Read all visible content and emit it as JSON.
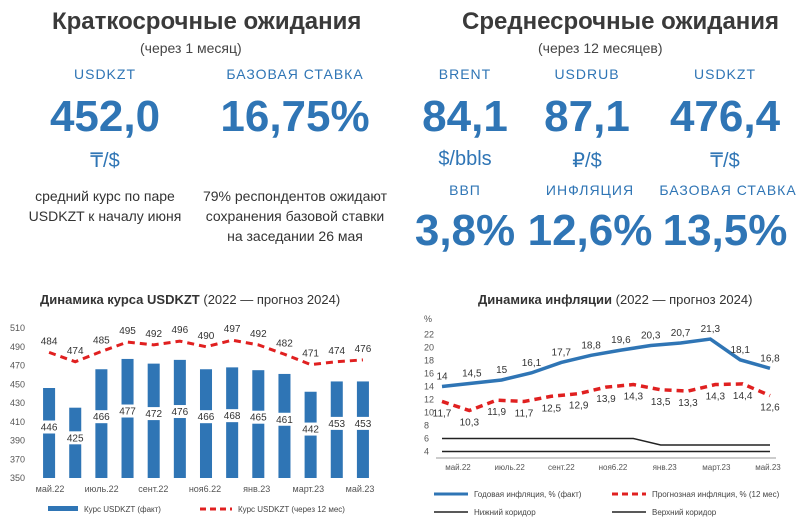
{
  "short_term": {
    "title": "Краткосрочные ожидания",
    "subtitle": "(через 1 месяц)",
    "usdkzt": {
      "label": "USDKZT",
      "value": "452,0",
      "unit": "₸/$"
    },
    "base_rate": {
      "label": "БАЗОВАЯ СТАВКА",
      "value": "16,75%"
    },
    "note_usdkzt": "средний курс по паре USDKZT к началу июня",
    "note_rate": "79% респондентов ожидают сохранения базовой ставки на заседании 26 мая"
  },
  "mid_term": {
    "title": "Среднесрочные ожидания",
    "subtitle": "(через 12 месяцев)",
    "brent": {
      "label": "BRENT",
      "value": "84,1",
      "unit": "$/bbls"
    },
    "usdrub": {
      "label": "USDRUB",
      "value": "87,1",
      "unit": "₽/$"
    },
    "usdkzt": {
      "label": "USDKZT",
      "value": "476,4",
      "unit": "₸/$"
    },
    "gdp": {
      "label": "ВВП",
      "value": "3,8%"
    },
    "inflation": {
      "label": "ИНФЛЯЦИЯ",
      "value": "12,6%"
    },
    "base_rate": {
      "label": "БАЗОВАЯ СТАВКА",
      "value": "13,5%"
    }
  },
  "colors": {
    "accent": "#2f75b5",
    "forecast": "#e02020",
    "corridor": "#222222"
  },
  "chart_data": [
    {
      "type": "bar",
      "title": "Динамика курса USDKZT",
      "title_note": "(2022 — прогноз 2024)",
      "yticks": [
        350,
        370,
        390,
        410,
        430,
        450,
        470,
        490,
        510
      ],
      "ylim": [
        350,
        510
      ],
      "x_tick_labels": [
        "май.22",
        "июль.22",
        "сент.22",
        "ноя6.22",
        "янв.23",
        "март.23",
        "май.23"
      ],
      "bars": {
        "name": "Курс USDKZT (факт)",
        "values": [
          446,
          425,
          466,
          477,
          472,
          476,
          466,
          468,
          465,
          461,
          442,
          453,
          453
        ]
      },
      "forecast": {
        "name": "Курс USDKZT (через 12 мес)",
        "values": [
          484,
          474,
          485,
          495,
          492,
          496,
          490,
          497,
          492,
          482,
          471,
          474,
          476
        ]
      }
    },
    {
      "type": "line",
      "title": "Динамика инфляции",
      "title_note": "(2022 — прогноз 2024)",
      "y_unit": "%",
      "yticks": [
        4,
        6,
        8,
        10,
        12,
        14,
        16,
        18,
        20,
        22
      ],
      "ylim": [
        3,
        23
      ],
      "x_tick_labels": [
        "май.22",
        "июль.22",
        "сент.22",
        "ноя6.22",
        "янв.23",
        "март.23",
        "май.23"
      ],
      "actual": {
        "name": "Годовая инфляция, % (факт)",
        "values": [
          14.0,
          14.5,
          15.0,
          16.1,
          17.7,
          18.8,
          19.6,
          20.3,
          20.7,
          21.3,
          18.1,
          16.8
        ]
      },
      "forecast": {
        "name": "Прогнозная инфляция, % (12 мес)",
        "values": [
          11.7,
          10.3,
          11.9,
          11.7,
          12.5,
          12.9,
          13.9,
          14.3,
          13.5,
          13.3,
          14.3,
          14.4,
          12.6
        ]
      },
      "lower_corridor": {
        "name": "Нижний коридор",
        "values": [
          4,
          4,
          4,
          4,
          4,
          4,
          4,
          4,
          4,
          4,
          4,
          4,
          4
        ]
      },
      "upper_corridor": {
        "name": "Верхний коридор",
        "values": [
          6,
          6,
          6,
          6,
          6,
          6,
          6,
          6,
          5,
          5,
          5,
          5,
          5
        ]
      }
    }
  ]
}
